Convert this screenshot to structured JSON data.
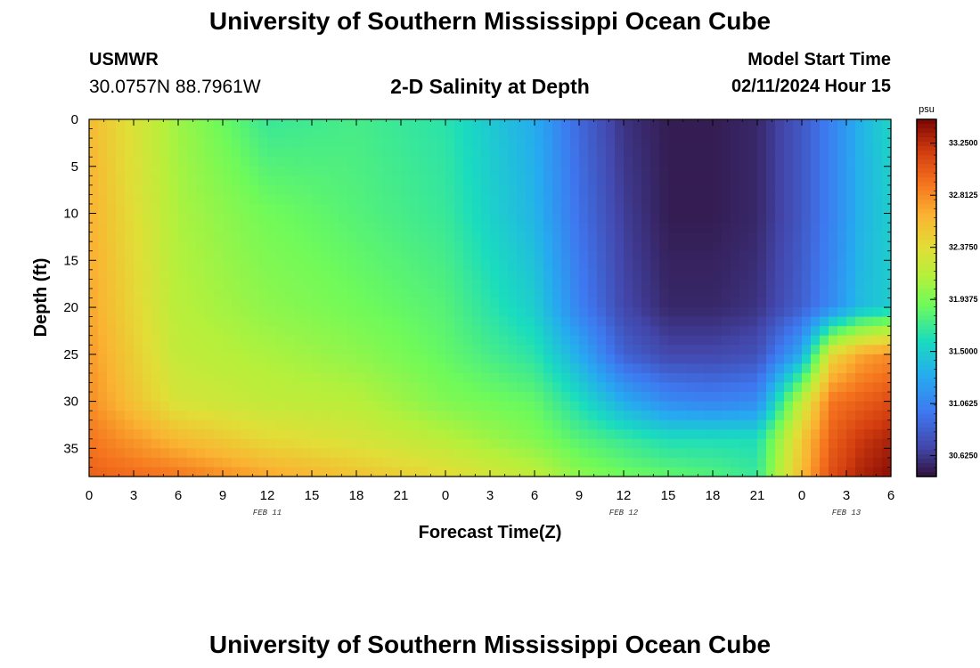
{
  "header": {
    "title": "University of Southern Mississippi Ocean Cube",
    "station": "USMWR",
    "coords": "30.0757N  88.7961W",
    "subtitle": "2-D Salinity at Depth",
    "model_start_label": "Model Start Time",
    "model_start_value": "02/11/2024 Hour 15",
    "footer_title": "University of Southern Mississippi Ocean Cube"
  },
  "chart_data": {
    "type": "heatmap",
    "title": "2-D Salinity at Depth",
    "xlabel": "Forecast Time(Z)",
    "ylabel": "Depth (ft)",
    "x_tick_labels": [
      "0",
      "3",
      "6",
      "9",
      "12",
      "15",
      "18",
      "21",
      "0",
      "3",
      "6",
      "9",
      "12",
      "15",
      "18",
      "21",
      "0",
      "3",
      "6"
    ],
    "x_range_hours": [
      0,
      54
    ],
    "date_labels": [
      {
        "label": "FEB 11",
        "hour": 12
      },
      {
        "label": "FEB 12",
        "hour": 36
      },
      {
        "label": "FEB 13",
        "hour": 51
      }
    ],
    "y_tick_labels": [
      "0",
      "5",
      "10",
      "15",
      "20",
      "25",
      "30",
      "35"
    ],
    "y_ticks": [
      0,
      5,
      10,
      15,
      20,
      25,
      30,
      35
    ],
    "ylim": [
      0,
      38
    ],
    "y_inverted": true,
    "colorbar": {
      "unit": "psu",
      "min": 30.45,
      "max": 33.45,
      "tick_labels": [
        "33.2500",
        "32.8125",
        "32.3750",
        "31.9375",
        "31.5000",
        "31.0625",
        "30.6250"
      ],
      "tick_values": [
        33.25,
        32.8125,
        32.375,
        31.9375,
        31.5,
        31.0625,
        30.625
      ]
    },
    "time_grid_hours": [
      0,
      6,
      12,
      18,
      24,
      30,
      33,
      36,
      39,
      42,
      45,
      48,
      50,
      52,
      54
    ],
    "depth_grid_ft": [
      0,
      10,
      20,
      25,
      30,
      34,
      38
    ],
    "salinity_psu": [
      [
        32.6,
        32.05,
        31.7,
        31.75,
        31.65,
        31.3,
        30.9,
        30.6,
        30.5,
        30.5,
        30.55,
        30.8,
        31.05,
        31.35,
        31.55
      ],
      [
        32.65,
        32.1,
        31.9,
        31.8,
        31.7,
        31.35,
        30.95,
        30.65,
        30.5,
        30.5,
        30.55,
        30.8,
        31.05,
        31.35,
        31.5
      ],
      [
        32.7,
        32.15,
        32.0,
        31.9,
        31.8,
        31.5,
        31.05,
        30.7,
        30.55,
        30.55,
        30.6,
        30.85,
        31.1,
        31.4,
        31.5
      ],
      [
        32.75,
        32.2,
        32.1,
        32.0,
        31.85,
        31.65,
        31.3,
        30.85,
        30.7,
        30.7,
        30.75,
        31.3,
        32.4,
        32.7,
        32.8
      ],
      [
        32.8,
        32.3,
        32.2,
        32.15,
        31.95,
        31.85,
        31.6,
        31.3,
        31.1,
        31.05,
        31.1,
        32.2,
        32.9,
        33.0,
        33.1
      ],
      [
        32.9,
        32.6,
        32.4,
        32.3,
        32.15,
        31.95,
        31.8,
        31.7,
        31.6,
        31.6,
        31.6,
        32.5,
        33.0,
        33.2,
        33.3
      ],
      [
        33.0,
        32.9,
        32.7,
        32.55,
        32.4,
        32.2,
        32.0,
        31.9,
        31.85,
        31.8,
        31.7,
        32.6,
        33.1,
        33.3,
        33.4
      ]
    ]
  }
}
